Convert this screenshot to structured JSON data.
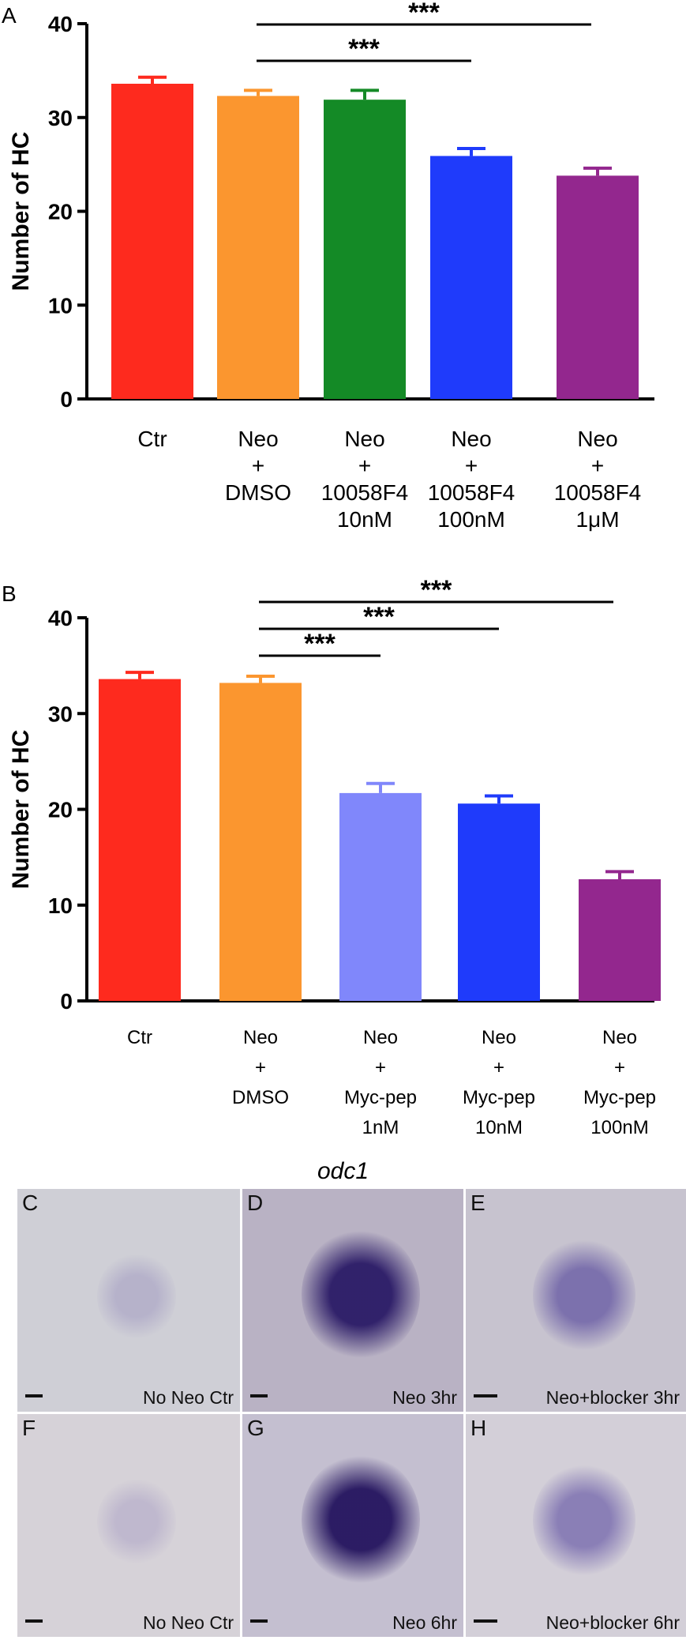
{
  "panels": {
    "a": "A",
    "b": "B"
  },
  "chart_data": [
    {
      "id": "A",
      "type": "bar",
      "ylabel": "Number of HC",
      "ylim": [
        0,
        40
      ],
      "yticks": [
        "0",
        "10",
        "20",
        "30",
        "40"
      ],
      "categories": [
        [
          "Ctr"
        ],
        [
          "Neo",
          "+",
          "DMSO"
        ],
        [
          "Neo",
          "+",
          "10058F4",
          "10nM"
        ],
        [
          "Neo",
          "+",
          "10058F4",
          "100nM"
        ],
        [
          "Neo",
          "+",
          "10058F4",
          "1μM"
        ]
      ],
      "values": [
        33.6,
        32.3,
        31.9,
        25.9,
        23.8
      ],
      "errors": [
        0.7,
        0.6,
        1.0,
        0.8,
        0.8
      ],
      "colors": [
        "#fe2a1e",
        "#fb962f",
        "#148a26",
        "#1f3bfb",
        "#93278e"
      ],
      "significance": [
        {
          "from": 1,
          "to": 3,
          "label": "***"
        },
        {
          "from": 1,
          "to": 4,
          "label": "***"
        }
      ]
    },
    {
      "id": "B",
      "type": "bar",
      "ylabel": "Number of HC",
      "ylim": [
        0,
        40
      ],
      "yticks": [
        "0",
        "10",
        "20",
        "30",
        "40"
      ],
      "categories": [
        [
          "Ctr"
        ],
        [
          "Neo",
          "+",
          "DMSO"
        ],
        [
          "Neo",
          "+",
          "Myc-pep",
          "1nM"
        ],
        [
          "Neo",
          "+",
          "Myc-pep",
          "10nM"
        ],
        [
          "Neo",
          "+",
          "Myc-pep",
          "100nM"
        ]
      ],
      "values": [
        33.6,
        33.2,
        21.7,
        20.6,
        12.7
      ],
      "errors": [
        0.7,
        0.7,
        1.0,
        0.8,
        0.8
      ],
      "colors": [
        "#fe2a1e",
        "#fb962f",
        "#8087fb",
        "#1f3bfb",
        "#93278e"
      ],
      "significance": [
        {
          "from": 1,
          "to": 2,
          "label": "***"
        },
        {
          "from": 1,
          "to": 3,
          "label": "***"
        },
        {
          "from": 1,
          "to": 4,
          "label": "***"
        }
      ]
    }
  ],
  "micrographs": {
    "title": "odc1",
    "images": [
      {
        "letter": "C",
        "caption": "No Neo Ctr",
        "stain": "light",
        "color": "#6a5aa8"
      },
      {
        "letter": "D",
        "caption": "Neo 3hr",
        "stain": "strong",
        "color": "#2a1a66"
      },
      {
        "letter": "E",
        "caption": "Neo+blocker 3hr",
        "stain": "medium",
        "color": "#4a3a96"
      },
      {
        "letter": "F",
        "caption": "No Neo Ctr",
        "stain": "light",
        "color": "#7a6ab0"
      },
      {
        "letter": "G",
        "caption": "Neo 6hr",
        "stain": "strong",
        "color": "#24145e"
      },
      {
        "letter": "H",
        "caption": "Neo+blocker 6hr",
        "stain": "medium",
        "color": "#5a4aa0"
      }
    ]
  }
}
